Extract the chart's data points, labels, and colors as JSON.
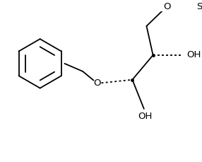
{
  "bg_color": "#ffffff",
  "line_color": "#000000",
  "lw": 1.3,
  "fig_width": 2.86,
  "fig_height": 2.29,
  "dpi": 100,
  "xlim": [
    0,
    286
  ],
  "ylim": [
    0,
    229
  ]
}
